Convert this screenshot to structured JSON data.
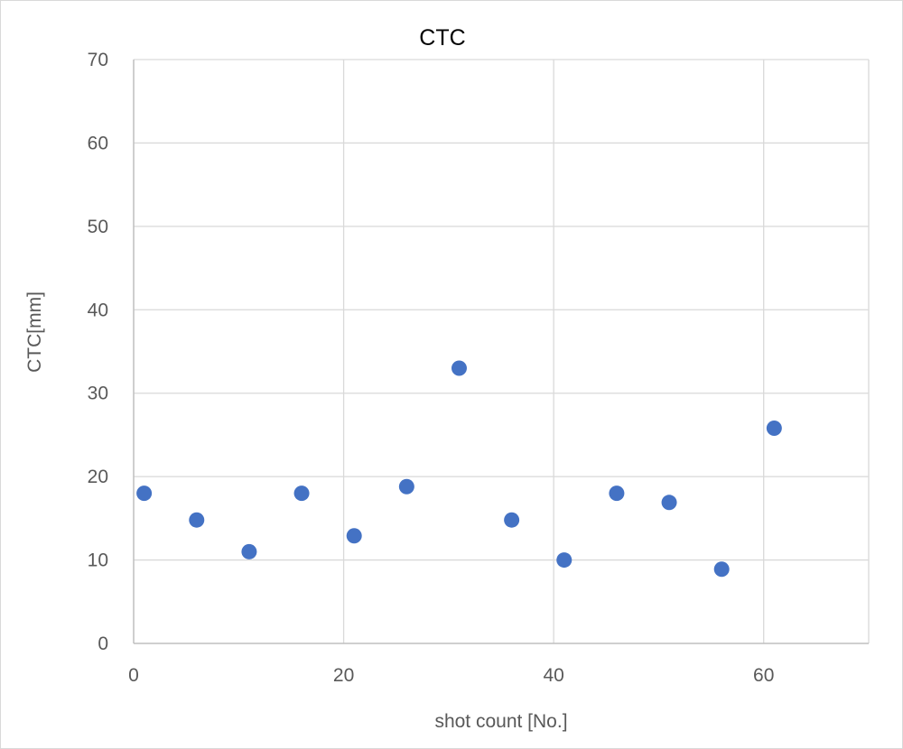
{
  "chart_data": {
    "type": "scatter",
    "title": "CTC",
    "xlabel": "shot count [No.]",
    "ylabel": "CTC[mm]",
    "xlim": [
      0,
      70
    ],
    "ylim": [
      0,
      70
    ],
    "xticks": [
      0,
      20,
      40,
      60
    ],
    "yticks": [
      0,
      10,
      20,
      30,
      40,
      50,
      60,
      70
    ],
    "grid": true,
    "legend": "none",
    "marker_color": "#4472c4",
    "series": [
      {
        "points": [
          {
            "x": 1,
            "y": 18
          },
          {
            "x": 6,
            "y": 14.8
          },
          {
            "x": 11,
            "y": 11
          },
          {
            "x": 16,
            "y": 18
          },
          {
            "x": 21,
            "y": 12.9
          },
          {
            "x": 26,
            "y": 18.8
          },
          {
            "x": 31,
            "y": 33
          },
          {
            "x": 36,
            "y": 14.8
          },
          {
            "x": 41,
            "y": 10
          },
          {
            "x": 46,
            "y": 18
          },
          {
            "x": 51,
            "y": 16.9
          },
          {
            "x": 56,
            "y": 8.9
          },
          {
            "x": 61,
            "y": 25.8
          }
        ]
      }
    ]
  }
}
